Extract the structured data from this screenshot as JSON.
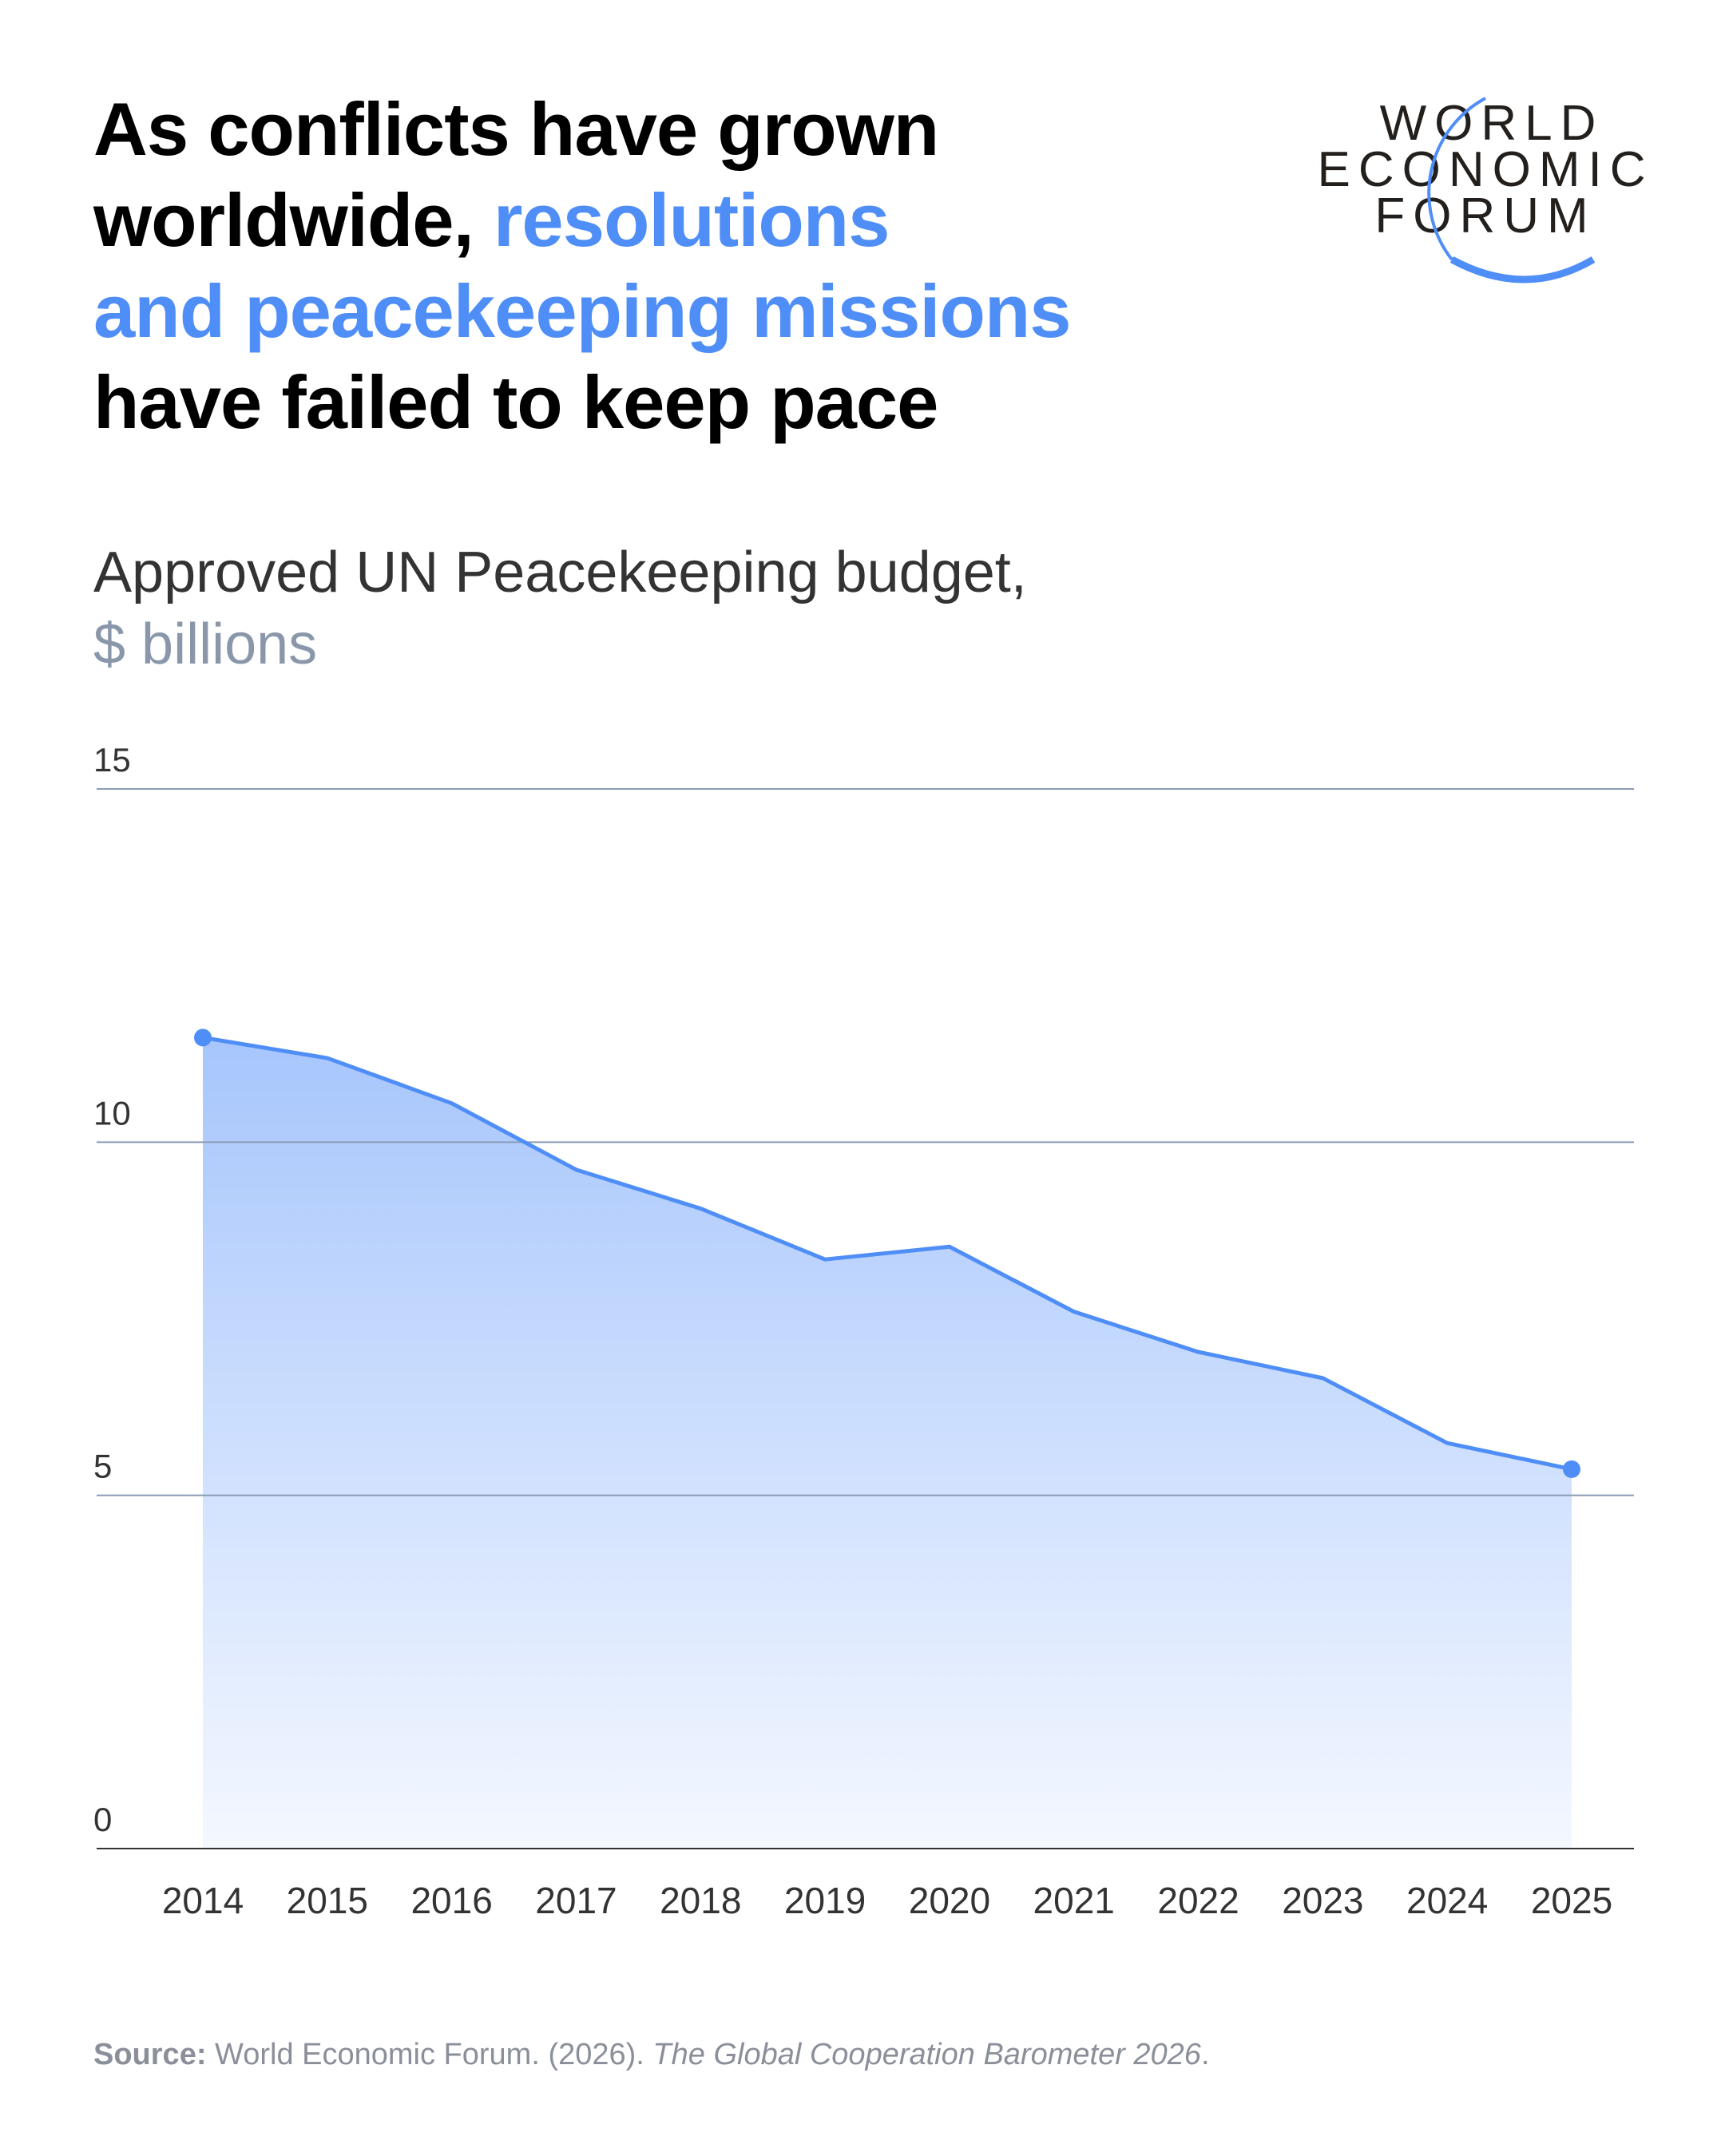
{
  "header": {
    "title_parts": [
      {
        "text": "As conflicts have grown worldwide, ",
        "highlight": false
      },
      {
        "text": "resolutions and peacekeeping missions",
        "highlight": true
      },
      {
        "text": " have failed to keep pace",
        "highlight": false
      }
    ],
    "title_line1": "As conflicts have grown",
    "title_line2a": "worldwide, ",
    "title_line2b": "resolutions",
    "title_line3": "and peacekeeping missions",
    "title_line4": "have failed to keep pace"
  },
  "logo": {
    "lines": [
      "WORLD",
      "ECONOMIC",
      "FORUM"
    ]
  },
  "subtitle": {
    "label": "Approved UN Peacekeeping budget,",
    "unit": "$ billions"
  },
  "source": {
    "label": "Source:",
    "text": " World Economic Forum. (2026). ",
    "italic": "The Global Cooperation Barometer 2026",
    "end": "."
  },
  "colors": {
    "accent": "#4f8ef7",
    "fill_top": "#a7c6fc",
    "fill_bottom": "#f4f8ff",
    "grid": "#8a9bb5",
    "axis": "#333333"
  },
  "chart_data": {
    "type": "area",
    "title": "Approved UN Peacekeeping budget, $ billions",
    "xlabel": "",
    "ylabel": "$ billions",
    "categories": [
      "2014",
      "2015",
      "2016",
      "2017",
      "2018",
      "2019",
      "2020",
      "2021",
      "2022",
      "2023",
      "2024",
      "2025"
    ],
    "series": [
      {
        "name": "Approved UN Peacekeeping budget",
        "values": [
          11.48,
          11.19,
          10.55,
          9.61,
          9.06,
          8.34,
          8.52,
          7.6,
          7.03,
          6.66,
          5.74,
          5.37
        ]
      }
    ],
    "ylim": [
      0,
      15
    ],
    "yticks": [
      0,
      5,
      10,
      15
    ],
    "grid": true,
    "legend": "none",
    "highlighted_points": [
      "2014",
      "2025"
    ]
  }
}
